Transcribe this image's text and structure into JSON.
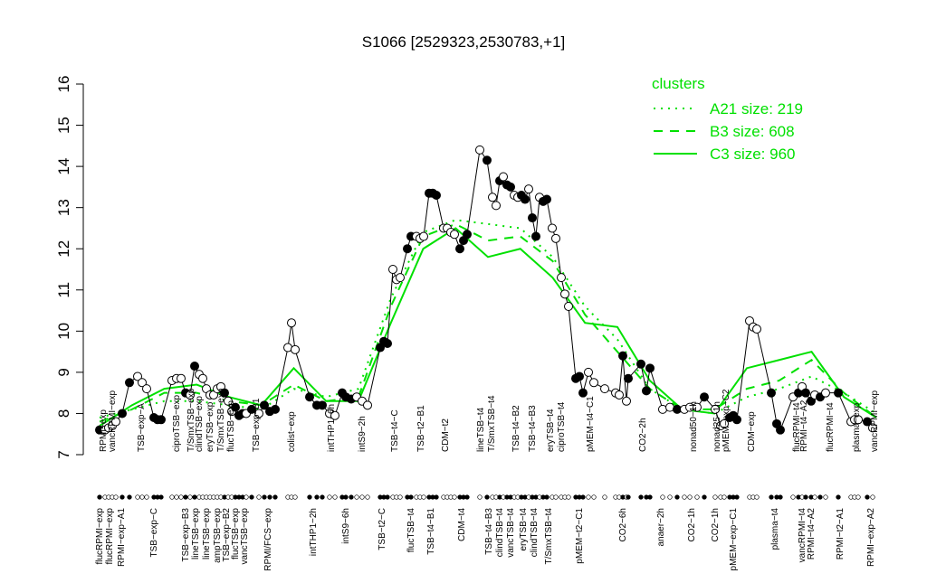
{
  "chart_data": {
    "type": "line",
    "title": "S1066 [2529323,2530783,+1]",
    "ylim": [
      7,
      16
    ],
    "yticks": [
      7,
      8,
      9,
      10,
      11,
      12,
      13,
      14,
      15,
      16
    ],
    "xlim": [
      105,
      970
    ],
    "points": {
      "x": [
        110,
        116,
        120,
        124,
        128,
        135,
        143,
        152,
        157,
        162,
        170,
        174,
        178,
        190,
        195,
        200,
        205,
        210,
        215,
        220,
        224,
        228,
        232,
        236,
        240,
        244,
        248,
        252,
        256,
        260,
        264,
        268,
        272,
        278,
        286,
        292,
        298,
        304,
        318,
        322,
        326,
        342,
        350,
        356,
        364,
        370,
        378,
        382,
        388,
        394,
        400,
        406,
        420,
        424,
        428,
        434,
        438,
        442,
        450,
        454,
        460,
        464,
        468,
        474,
        478,
        482,
        490,
        494,
        498,
        502,
        508,
        512,
        516,
        530,
        538,
        544,
        548,
        552,
        556,
        560,
        564,
        568,
        572,
        576,
        580,
        584,
        588,
        592,
        596,
        600,
        604,
        610,
        614,
        620,
        624,
        628,
        636,
        640,
        644,
        650,
        656,
        668,
        680,
        684,
        688,
        692,
        694,
        708,
        714,
        718,
        732,
        740,
        748,
        756,
        762,
        770,
        778,
        790,
        796,
        800,
        806,
        810,
        814,
        828,
        832,
        836,
        852,
        858,
        862,
        876,
        882,
        886,
        890,
        896,
        900,
        906,
        912,
        926,
        940,
        944,
        948,
        958,
        964
      ],
      "values": [
        7.6,
        7.6,
        7.65,
        7.7,
        7.8,
        8.0,
        8.75,
        8.9,
        8.75,
        8.6,
        7.9,
        7.85,
        7.85,
        8.8,
        8.85,
        8.85,
        8.5,
        8.45,
        9.15,
        8.95,
        8.85,
        8.6,
        8.45,
        8.45,
        8.6,
        8.65,
        8.5,
        8.3,
        8.05,
        8.15,
        7.95,
        8.0,
        8.0,
        8.1,
        8.0,
        8.2,
        8.05,
        8.1,
        9.6,
        10.2,
        9.55,
        8.4,
        8.2,
        8.2,
        8.0,
        7.95,
        8.5,
        8.4,
        8.35,
        8.4,
        8.3,
        8.2,
        9.6,
        9.75,
        9.7,
        11.5,
        11.25,
        11.3,
        12.0,
        12.3,
        12.3,
        12.25,
        12.3,
        13.35,
        13.35,
        13.3,
        12.5,
        12.5,
        12.4,
        12.35,
        12.0,
        12.2,
        12.35,
        14.4,
        14.15,
        13.25,
        13.05,
        13.65,
        13.75,
        13.55,
        13.5,
        13.3,
        13.25,
        13.3,
        13.2,
        13.45,
        12.75,
        12.3,
        13.25,
        13.15,
        13.2,
        12.5,
        12.25,
        11.3,
        10.9,
        10.6,
        8.85,
        8.9,
        8.5,
        9.0,
        8.75,
        8.6,
        8.5,
        8.45,
        9.4,
        8.3,
        8.85,
        9.2,
        8.55,
        9.1,
        8.1,
        8.15,
        8.1,
        8.1,
        8.15,
        8.15,
        8.4,
        8.1,
        7.7,
        7.75,
        7.9,
        7.95,
        7.85,
        10.25,
        10.1,
        10.05,
        8.5,
        7.75,
        7.6,
        8.4,
        8.5,
        8.65,
        8.5,
        8.3,
        8.45,
        8.4,
        8.5,
        8.5,
        7.8,
        7.85,
        7.85,
        7.8,
        7.65
      ],
      "filled": [
        true,
        false,
        false,
        false,
        false,
        true,
        true,
        false,
        false,
        false,
        true,
        true,
        true,
        false,
        false,
        false,
        true,
        false,
        true,
        false,
        false,
        false,
        false,
        false,
        false,
        false,
        true,
        false,
        false,
        true,
        true,
        true,
        false,
        true,
        false,
        true,
        true,
        true,
        false,
        false,
        false,
        true,
        true,
        true,
        false,
        false,
        true,
        true,
        true,
        false,
        false,
        false,
        true,
        true,
        true,
        false,
        false,
        false,
        true,
        true,
        false,
        false,
        false,
        true,
        true,
        true,
        false,
        false,
        false,
        false,
        true,
        true,
        true,
        false,
        true,
        false,
        false,
        true,
        false,
        true,
        true,
        false,
        false,
        true,
        true,
        false,
        true,
        true,
        false,
        true,
        true,
        false,
        false,
        false,
        false,
        false,
        true,
        true,
        true,
        false,
        false,
        false,
        false,
        false,
        true,
        false,
        true,
        true,
        true,
        true,
        false,
        false,
        true,
        false,
        false,
        false,
        true,
        false,
        false,
        false,
        true,
        true,
        true,
        false,
        false,
        false,
        true,
        true,
        true,
        false,
        true,
        false,
        true,
        true,
        false,
        true,
        false,
        true,
        false,
        false,
        false,
        true,
        false
      ]
    },
    "legend_title": "clusters",
    "series": [
      {
        "name": "A21 size: 219",
        "color": "#00e000",
        "dash": "dotted",
        "values": [
          7.9,
          8.1,
          8.3,
          8.3,
          8.2,
          8.1,
          8.6,
          8.4,
          8.6,
          10.8,
          12.4,
          12.7,
          12.6,
          12.5,
          11.8,
          10.6,
          9.8,
          8.6,
          8.1,
          8.0,
          8.4,
          8.6,
          8.9,
          8.5,
          8.0
        ]
      },
      {
        "name": "B3 size: 608",
        "color": "#00e000",
        "dash": "dashed",
        "values": [
          7.8,
          8.1,
          8.5,
          8.5,
          8.3,
          8.2,
          8.7,
          8.3,
          8.4,
          10.6,
          12.3,
          12.6,
          12.2,
          12.3,
          11.7,
          10.4,
          9.5,
          8.6,
          8.1,
          8.1,
          8.6,
          8.8,
          9.3,
          8.5,
          7.9
        ]
      },
      {
        "name": "C3 size: 960",
        "color": "#00e000",
        "dash": "solid",
        "values": [
          7.7,
          8.2,
          8.6,
          8.7,
          8.4,
          8.2,
          9.1,
          8.3,
          8.3,
          10.2,
          12.0,
          12.5,
          11.8,
          12.0,
          11.3,
          10.2,
          10.1,
          8.8,
          8.1,
          8.0,
          9.1,
          9.3,
          9.5,
          8.4,
          7.9
        ]
      }
    ],
    "top_labels": [
      {
        "x": 114,
        "text": "RPMI−exp"
      },
      {
        "x": 124,
        "text": "vancRPMI−exp"
      },
      {
        "x": 156,
        "text": "TSB−exp−A"
      },
      {
        "x": 195,
        "text": "ciproTSB−exp"
      },
      {
        "x": 211,
        "text": "T/SmxTSB−exp"
      },
      {
        "x": 220,
        "text": "clindTSB−exp"
      },
      {
        "x": 232,
        "text": "eryTSB−exp"
      },
      {
        "x": 244,
        "text": "T/SmxTSB−exp"
      },
      {
        "x": 255,
        "text": "flucTSB−exp"
      },
      {
        "x": 283,
        "text": "TSB−exp−B1"
      },
      {
        "x": 322,
        "text": "colist−exp"
      },
      {
        "x": 366,
        "text": "intTHP1−6h"
      },
      {
        "x": 400,
        "text": "intS9−2h"
      },
      {
        "x": 436,
        "text": "TSB−t4−C"
      },
      {
        "x": 465,
        "text": "TSB−t2−B1"
      },
      {
        "x": 492,
        "text": "CDM−t2"
      },
      {
        "x": 531,
        "text": "lineTSB−t4"
      },
      {
        "x": 543,
        "text": "T/SmxTSB−t4"
      },
      {
        "x": 570,
        "text": "TSB−t4−B2"
      },
      {
        "x": 588,
        "text": "TSB−t4−B3"
      },
      {
        "x": 608,
        "text": "eryTSB−t4"
      },
      {
        "x": 620,
        "text": "ciproTSB−t4"
      },
      {
        "x": 652,
        "text": "pMEM−t4−C1"
      },
      {
        "x": 710,
        "text": "CO2−2h"
      },
      {
        "x": 766,
        "text": "nonad50−1h"
      },
      {
        "x": 792,
        "text": "nonad25−1h"
      },
      {
        "x": 802,
        "text": "pMEM−exp−C2"
      },
      {
        "x": 830,
        "text": "CDM−exp"
      },
      {
        "x": 880,
        "text": "flucRPMI−t4"
      },
      {
        "x": 888,
        "text": "RPMI−t4−A2"
      },
      {
        "x": 917,
        "text": "flucRPMI−t4"
      },
      {
        "x": 946,
        "text": "plasma−exp"
      },
      {
        "x": 966,
        "text": "vancRPMI−exp"
      }
    ],
    "bottom_labels": [
      {
        "x": 110,
        "text": "flucRPMI−exp"
      },
      {
        "x": 121,
        "text": "flucRPMI−exp"
      },
      {
        "x": 134,
        "text": "RPMI−exp−A1"
      },
      {
        "x": 170,
        "text": "TSB−exp−C"
      },
      {
        "x": 205,
        "text": "TSB−exp−B3"
      },
      {
        "x": 216,
        "text": "lineTSB−exp"
      },
      {
        "x": 228,
        "text": "lineTSB−exp"
      },
      {
        "x": 240,
        "text": "ampTSB−exp"
      },
      {
        "x": 250,
        "text": "TSB−exp−B2"
      },
      {
        "x": 260,
        "text": "flucTSB−exp"
      },
      {
        "x": 270,
        "text": "vancTSB−exp"
      },
      {
        "x": 296,
        "text": "RPMI/FCS−exp"
      },
      {
        "x": 346,
        "text": "intTHP1−2h"
      },
      {
        "x": 382,
        "text": "intS9−6h"
      },
      {
        "x": 422,
        "text": "TSB−t2−C"
      },
      {
        "x": 454,
        "text": "flucTSB−t4"
      },
      {
        "x": 476,
        "text": "TSB−t4−B1"
      },
      {
        "x": 510,
        "text": "CDM−t4"
      },
      {
        "x": 540,
        "text": "TSB−t4−B3"
      },
      {
        "x": 552,
        "text": "clindTSB−t4"
      },
      {
        "x": 564,
        "text": "vancTSB−t4"
      },
      {
        "x": 578,
        "text": "eryTSB−t4"
      },
      {
        "x": 590,
        "text": "clindTSB−t4"
      },
      {
        "x": 606,
        "text": "T/SmxTSB−t4"
      },
      {
        "x": 640,
        "text": "pMEM−t2−C1"
      },
      {
        "x": 688,
        "text": "CO2−6h"
      },
      {
        "x": 730,
        "text": "anaer−2h"
      },
      {
        "x": 764,
        "text": "CO2−1h"
      },
      {
        "x": 790,
        "text": "CO2−1h"
      },
      {
        "x": 810,
        "text": "pMEM−exp−C1"
      },
      {
        "x": 856,
        "text": "plasma−t4"
      },
      {
        "x": 886,
        "text": "vancRPMI−t4"
      },
      {
        "x": 896,
        "text": "RPMI−t4−A2"
      },
      {
        "x": 928,
        "text": "RPMI−t2−A1"
      },
      {
        "x": 962,
        "text": "RPMI−exp−A2"
      }
    ]
  }
}
